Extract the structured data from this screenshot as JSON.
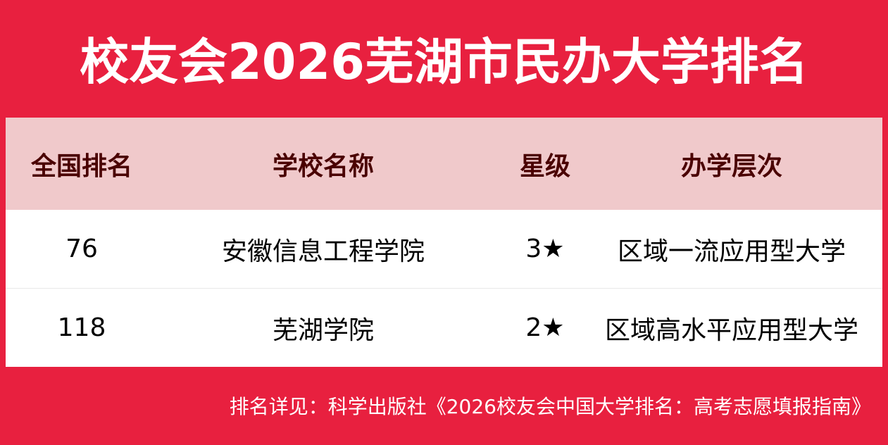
{
  "title": "校友会2026芜湖市民办大学排名",
  "table": {
    "headers": [
      "全国排名",
      "学校名称",
      "星级",
      "办学层次"
    ],
    "rows": [
      {
        "rank": "76",
        "name": "安徽信息工程学院",
        "stars": "3★",
        "level": "区域一流应用型大学"
      },
      {
        "rank": "118",
        "name": "芜湖学院",
        "stars": "2★",
        "level": "区域高水平应用型大学"
      }
    ]
  },
  "footer": "排名详见：科学出版社《2026校友会中国大学排名：高考志愿填报指南》",
  "colors": {
    "background": "#e8203f",
    "header_bg": "#f0c9cb",
    "header_text": "#4a0000"
  }
}
